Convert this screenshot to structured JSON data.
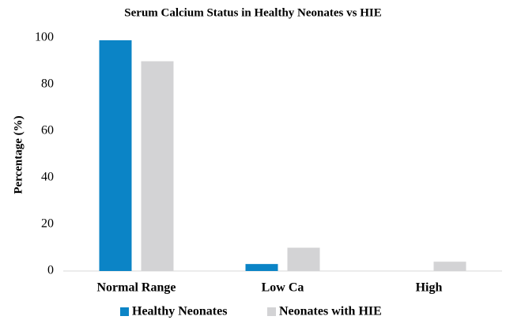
{
  "chart_data": {
    "type": "bar",
    "title": "Serum Calcium Status in Healthy Neonates vs HIE",
    "y_label": "Percentage (%)",
    "categories": [
      "Normal Range",
      "Low Ca",
      "High"
    ],
    "series": [
      {
        "name": "Healthy Neonates",
        "color": "#0b84c6",
        "values": [
          99,
          3,
          0
        ]
      },
      {
        "name": "Neonates with HIE",
        "color": "#d3d3d5",
        "values": [
          90,
          10,
          4
        ]
      }
    ],
    "ylim": [
      0,
      100
    ],
    "yticks": [
      0,
      20,
      40,
      60,
      80,
      100
    ],
    "grid": false,
    "legend": "bottom"
  }
}
